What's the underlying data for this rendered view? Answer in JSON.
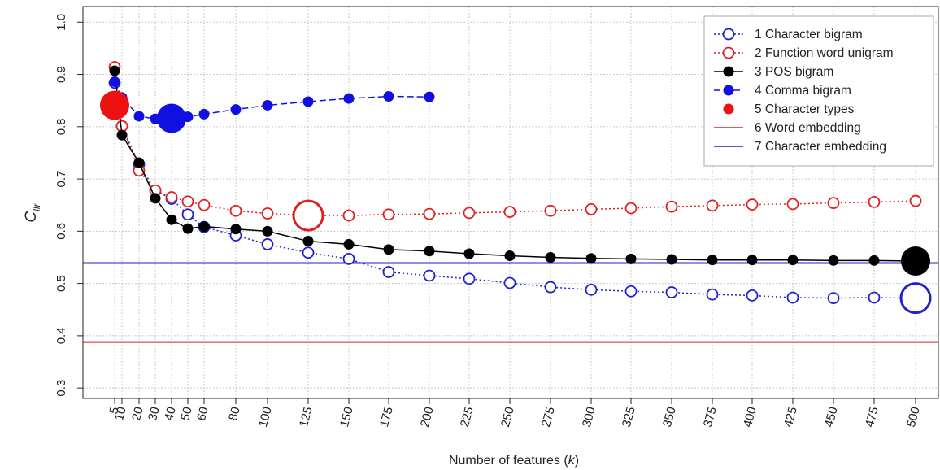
{
  "chart_data": {
    "type": "line",
    "xlabel_main": "Number of features (",
    "xlabel_var": "k",
    "xlabel_end": ")",
    "ylabel_main": "C",
    "ylabel_sub": "llr",
    "ylim": [
      0.28,
      1.03
    ],
    "yticks": [
      "0.3",
      "0.4",
      "0.5",
      "0.6",
      "0.7",
      "0.8",
      "0.9",
      "1.0"
    ],
    "ytick_values": [
      0.3,
      0.4,
      0.5,
      0.6,
      0.7,
      0.8,
      0.9,
      1.0
    ],
    "x_categories": [
      "5",
      "10",
      "20",
      "30",
      "40",
      "50",
      "60",
      "80",
      "100",
      "125",
      "150",
      "175",
      "200",
      "225",
      "250",
      "275",
      "300",
      "325",
      "350",
      "375",
      "400",
      "425",
      "450",
      "475",
      "500"
    ],
    "grid": true,
    "legend_position": "top-right",
    "series": [
      {
        "name": "1 Character bigram",
        "color": "#1f1fd0",
        "line": "dotted",
        "marker": "open-circle",
        "x": [
          "5",
          "10",
          "20",
          "30",
          "40",
          "50",
          "60",
          "80",
          "100",
          "125",
          "150",
          "175",
          "200",
          "225",
          "250",
          "275",
          "300",
          "325",
          "350",
          "375",
          "400",
          "425",
          "450",
          "475",
          "500"
        ],
        "y": [
          0.884,
          0.801,
          0.728,
          0.678,
          0.662,
          0.632,
          0.608,
          0.592,
          0.575,
          0.559,
          0.547,
          0.522,
          0.515,
          0.509,
          0.501,
          0.493,
          0.488,
          0.485,
          0.483,
          0.479,
          0.477,
          0.473,
          0.472,
          0.473,
          0.472
        ],
        "highlight": "500"
      },
      {
        "name": "2 Function word unigram",
        "color": "#e02020",
        "line": "dotted",
        "marker": "open-circle",
        "x": [
          "5",
          "10",
          "20",
          "30",
          "40",
          "50",
          "60",
          "80",
          "100",
          "125",
          "150",
          "175",
          "200",
          "225",
          "250",
          "275",
          "300",
          "325",
          "350",
          "375",
          "400",
          "425",
          "450",
          "475",
          "500"
        ],
        "y": [
          0.914,
          0.801,
          0.716,
          0.678,
          0.665,
          0.657,
          0.65,
          0.639,
          0.634,
          0.63,
          0.63,
          0.632,
          0.633,
          0.635,
          0.637,
          0.639,
          0.642,
          0.644,
          0.647,
          0.649,
          0.651,
          0.652,
          0.654,
          0.656,
          0.658
        ],
        "highlight": "125"
      },
      {
        "name": "3 POS bigram",
        "color": "#000000",
        "line": "solid",
        "marker": "filled-circle",
        "x": [
          "5",
          "10",
          "20",
          "30",
          "40",
          "50",
          "60",
          "80",
          "100",
          "125",
          "150",
          "175",
          "200",
          "225",
          "250",
          "275",
          "300",
          "325",
          "350",
          "375",
          "400",
          "425",
          "450",
          "475",
          "500"
        ],
        "y": [
          0.907,
          0.784,
          0.731,
          0.663,
          0.622,
          0.605,
          0.609,
          0.604,
          0.6,
          0.581,
          0.575,
          0.565,
          0.562,
          0.557,
          0.553,
          0.55,
          0.548,
          0.547,
          0.546,
          0.545,
          0.545,
          0.545,
          0.544,
          0.544,
          0.543
        ],
        "highlight": "500"
      },
      {
        "name": "4 Comma bigram",
        "color": "#1010e0",
        "line": "dashed",
        "marker": "filled-circle",
        "x": [
          "5",
          "10",
          "20",
          "30",
          "40",
          "50",
          "60",
          "80",
          "100",
          "125",
          "150",
          "175",
          "200"
        ],
        "y": [
          0.886,
          0.856,
          0.82,
          0.815,
          0.816,
          0.819,
          0.824,
          0.833,
          0.841,
          0.848,
          0.854,
          0.858,
          0.857
        ],
        "highlight": "40"
      },
      {
        "name": "5 Character types",
        "color": "#ee1111",
        "line": "none",
        "marker": "filled-circle",
        "x": [
          "5"
        ],
        "y": [
          0.841
        ],
        "highlight": "5"
      }
    ],
    "hlines": [
      {
        "name": "6 Word embedding",
        "color": "#e02020",
        "y": 0.388
      },
      {
        "name": "7 Character embedding",
        "color": "#2020c0",
        "y": 0.539
      }
    ]
  }
}
